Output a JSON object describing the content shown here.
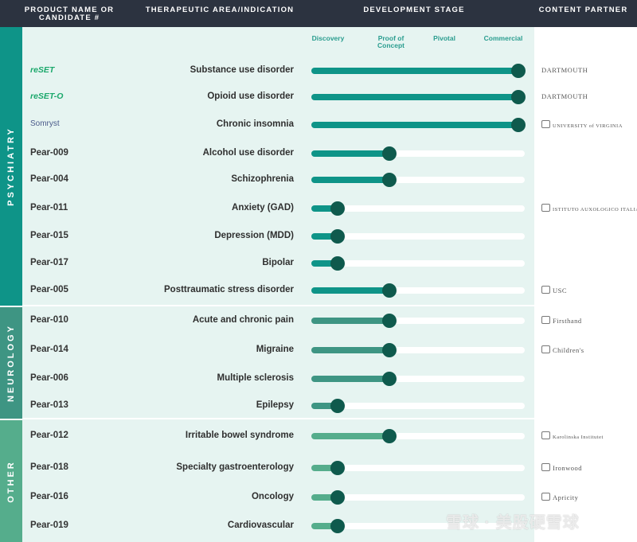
{
  "header": {
    "col_product": "PRODUCT NAME OR CANDIDATE #",
    "col_indication": "THERAPEUTIC AREA/INDICATION",
    "col_stage": "DEVELOPMENT STAGE",
    "col_partner": "CONTENT PARTNER"
  },
  "groups": {
    "psychiatry": "PSYCHIATRY",
    "neurology": "NEUROLOGY",
    "other": "OTHER"
  },
  "colors": {
    "psychiatry": "#0e9488",
    "neurology": "#3e9583",
    "other": "#55ad8c",
    "dot": "#0f5a4d"
  },
  "watermark": "雪球 · 美股硬雪球",
  "chart_data": {
    "type": "bar",
    "stages": [
      "Discovery",
      "Proof of Concept",
      "Pivotal",
      "Commercial"
    ],
    "xlim": [
      0,
      4
    ],
    "rows": [
      {
        "group": "psychiatry",
        "product": "reSET",
        "indication": "Substance use disorder",
        "value": 4,
        "partner": "DARTMOUTH"
      },
      {
        "group": "psychiatry",
        "product": "reSET-O",
        "indication": "Opioid use disorder",
        "value": 4,
        "partner": "DARTMOUTH"
      },
      {
        "group": "psychiatry",
        "product": "Somryst",
        "indication": "Chronic insomnia",
        "value": 4,
        "partner": "UNIVERSITY of VIRGINIA"
      },
      {
        "group": "psychiatry",
        "product": "Pear-009",
        "indication": "Alcohol use disorder",
        "value": 1.5,
        "partner": ""
      },
      {
        "group": "psychiatry",
        "product": "Pear-004",
        "indication": "Schizophrenia",
        "value": 1.5,
        "partner": ""
      },
      {
        "group": "psychiatry",
        "product": "Pear-011",
        "indication": "Anxiety (GAD)",
        "value": 0.5,
        "partner": "ISTITUTO AUXOLOGICO ITALIANO"
      },
      {
        "group": "psychiatry",
        "product": "Pear-015",
        "indication": "Depression (MDD)",
        "value": 0.5,
        "partner": ""
      },
      {
        "group": "psychiatry",
        "product": "Pear-017",
        "indication": "Bipolar",
        "value": 0.5,
        "partner": ""
      },
      {
        "group": "psychiatry",
        "product": "Pear-005",
        "indication": "Posttraumatic stress disorder",
        "value": 1.5,
        "partner": "USC"
      },
      {
        "group": "neurology",
        "product": "Pear-010",
        "indication": "Acute and chronic pain",
        "value": 1.5,
        "partner": "Firsthand"
      },
      {
        "group": "neurology",
        "product": "Pear-014",
        "indication": "Migraine",
        "value": 1.5,
        "partner": "Children's"
      },
      {
        "group": "neurology",
        "product": "Pear-006",
        "indication": "Multiple sclerosis",
        "value": 1.5,
        "partner": ""
      },
      {
        "group": "neurology",
        "product": "Pear-013",
        "indication": "Epilepsy",
        "value": 0.5,
        "partner": ""
      },
      {
        "group": "other",
        "product": "Pear-012",
        "indication": "Irritable bowel syndrome",
        "value": 1.5,
        "partner": "Karolinska Institutet"
      },
      {
        "group": "other",
        "product": "Pear-018",
        "indication": "Specialty gastroenterology",
        "value": 0.5,
        "partner": "Ironwood"
      },
      {
        "group": "other",
        "product": "Pear-016",
        "indication": "Oncology",
        "value": 0.5,
        "partner": "Apricity"
      },
      {
        "group": "other",
        "product": "Pear-019",
        "indication": "Cardiovascular",
        "value": 0.5,
        "partner": ""
      }
    ]
  }
}
